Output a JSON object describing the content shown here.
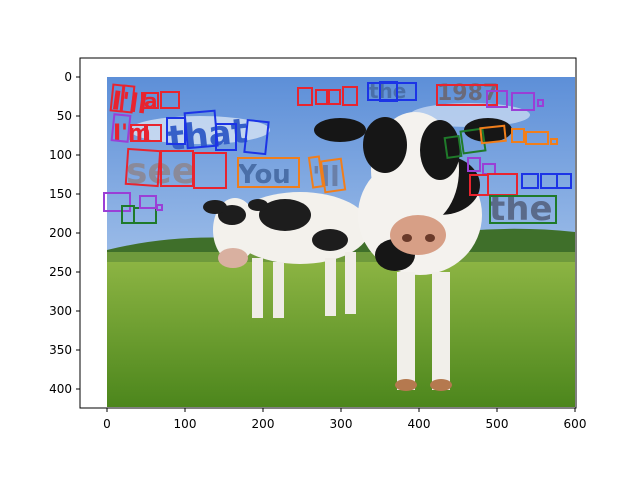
{
  "figure": {
    "x_ticks": [
      "0",
      "100",
      "200",
      "300",
      "400",
      "500",
      "600"
    ],
    "y_ticks": [
      "0",
      "50",
      "100",
      "150",
      "200",
      "250",
      "300",
      "350",
      "400"
    ],
    "colors": {
      "red": "#e8242f",
      "blue": "#1c34e6",
      "green": "#1f7a2a",
      "orange": "#f07e1b",
      "purple": "#9a3fd6",
      "sky_top": "#5d8fd8",
      "sky_bottom": "#bcd6f2",
      "grass_top": "#7fa83a",
      "grass_bottom": "#4f8a1e"
    }
  },
  "scene_text": [
    {
      "text": "I'll",
      "color": "red"
    },
    {
      "text": "a",
      "color": "red"
    },
    {
      "text": "I'm",
      "color": "red"
    },
    {
      "text": "that",
      "color": "blue"
    },
    {
      "text": "see",
      "color": "red"
    },
    {
      "text": "You",
      "color": "orange"
    },
    {
      "text": "'ll",
      "color": "orange"
    },
    {
      "text": "the",
      "color": "blue"
    },
    {
      "text": "1987",
      "color": "red"
    },
    {
      "text": "the",
      "color": "green"
    }
  ]
}
